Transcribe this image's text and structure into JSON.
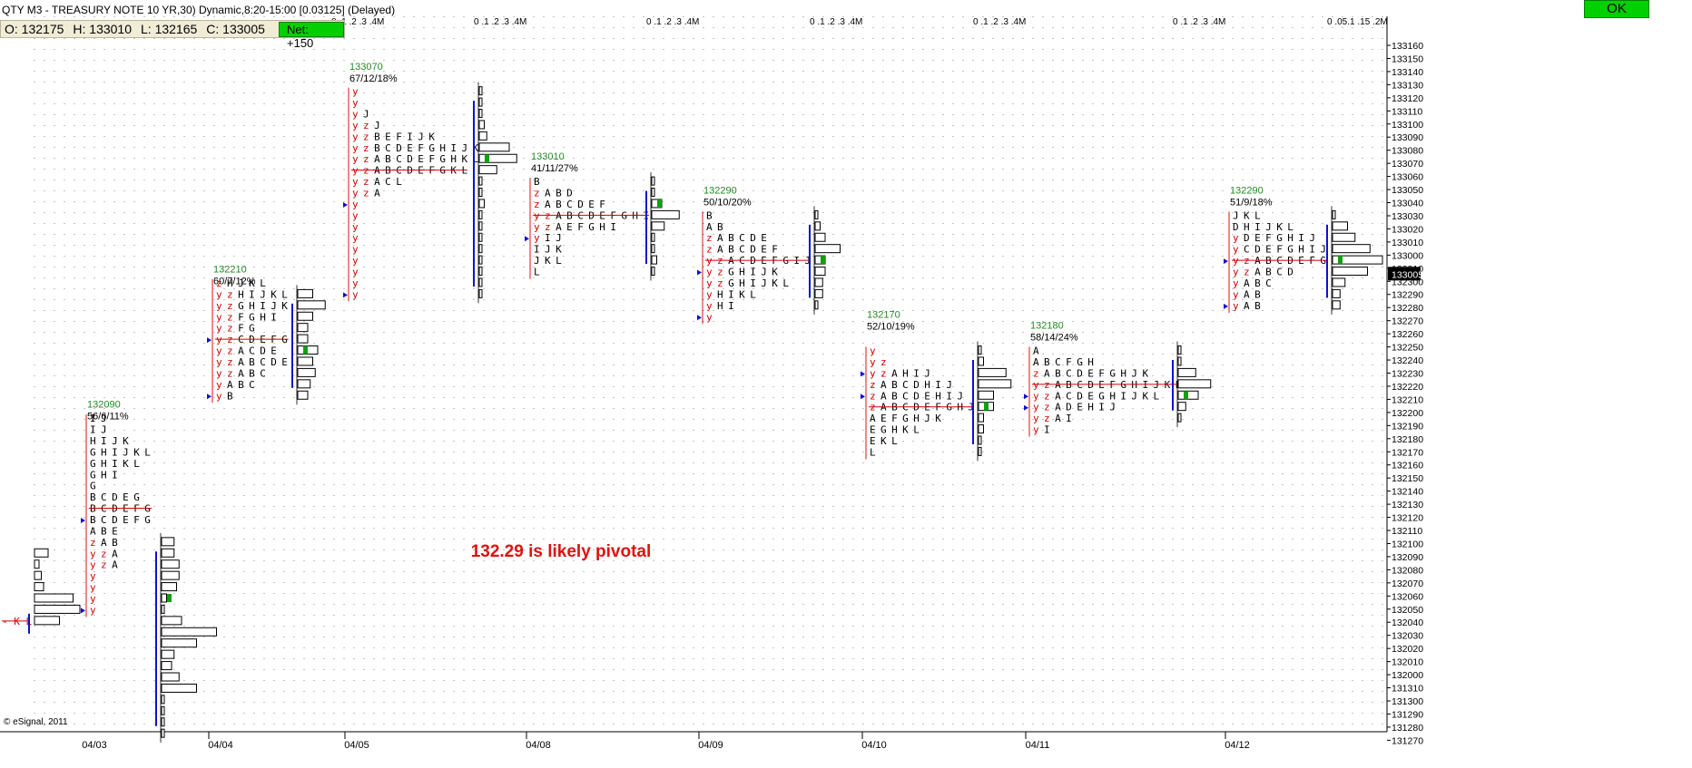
{
  "header": {
    "title": "QTY M3 - TREASURY NOTE 10 YR,30) Dynamic,8:20-15:00 [0.03125] (Delayed)",
    "open": "O: 132175",
    "high": "H: 133010",
    "low": "L: 132165",
    "close": "C: 133005",
    "net": "Net: +150",
    "ok": "OK",
    "brand": "© eSignal, 2011"
  },
  "chart_data": {
    "type": "table",
    "annotation": "132.29 is likely pivotal",
    "volume_scale_labels": [
      "0 .1 .2 .3 .4M",
      "0 .05.1 .15 .2M"
    ],
    "x_tick_labels": [
      "04/03",
      "04/04",
      "04/05",
      "04/08",
      "04/09",
      "04/10",
      "04/11",
      "04/12"
    ],
    "y_tick_labels": [
      "133160",
      "133150",
      "133140",
      "133130",
      "133120",
      "133110",
      "133100",
      "133090",
      "133080",
      "133070",
      "133060",
      "133050",
      "133040",
      "133030",
      "133020",
      "133010",
      "133000",
      "132310",
      "132300",
      "132290",
      "132280",
      "132270",
      "132260",
      "132250",
      "132240",
      "132230",
      "132220",
      "132210",
      "132200",
      "132190",
      "132180",
      "132170",
      "132160",
      "132150",
      "132140",
      "132130",
      "132120",
      "132110",
      "132100",
      "132090",
      "132080",
      "132070",
      "132060",
      "132050",
      "132040",
      "132030",
      "132020",
      "132010",
      "132000",
      "131310",
      "131300",
      "131290",
      "131280",
      "131270"
    ],
    "current_price_label": "133005",
    "profiles": [
      {
        "date": "04/03",
        "label_price": "132090",
        "label_stats": "56/6/11%",
        "label_row": 33,
        "tpo_start_row": 34,
        "tpo_rows": [
          "I J",
          "I J",
          "H I J K",
          "G H I J K L",
          "G H I K L",
          "G H I",
          "G",
          "B C D E G",
          "B C D E F G",
          "B C D E F G",
          "A B E",
          "z A B",
          "y z A",
          "y z A",
          "y",
          "y",
          "y",
          "y"
        ],
        "strike_rows": [
          8
        ],
        "marker_rows": [
          9,
          17
        ],
        "prev_tpo": "- K L -",
        "prev_row": 52,
        "vol_start_row": 45,
        "vol_bars": [
          0.05,
          0.05,
          0.07,
          0.07,
          0.06,
          0.02,
          0.01,
          0.08,
          0.22,
          0.14,
          0.05,
          0.04,
          0.07,
          0.14,
          0.01,
          0.01,
          0.01,
          0.01
        ],
        "prev_vol_start_row": 46,
        "prev_vol": [
          0.06,
          0.02,
          0.03,
          0.04,
          0.17,
          0.2,
          0.11
        ],
        "vol_ref_row": 50
      },
      {
        "date": "04/04",
        "label_price": "132210",
        "label_stats": "60/7/12%",
        "label_row": 21,
        "tpo_start_row": 22,
        "tpo_rows": [
          "z H J K L",
          "y z H I J K L",
          "y z G H I J K",
          "y z F G H I",
          "y z F G",
          "y z C D E F G",
          "y z A C D E",
          "y z A B C D E",
          "y z A B C",
          "y A B C",
          "y B"
        ],
        "strike_rows": [
          5
        ],
        "marker_rows": [
          5,
          10
        ],
        "vol_start_row": 23,
        "vol_bars": [
          0.06,
          0.11,
          0.06,
          0.04,
          0.04,
          0.08,
          0.06,
          0.07,
          0.05,
          0.04
        ],
        "vol_ref_row": 28
      },
      {
        "date": "04/05",
        "label_price": "133070",
        "label_stats": "67/12/18%",
        "label_row": 3,
        "tpo_start_row": 5,
        "tpo_rows": [
          "y",
          "y",
          "y J",
          "y z J",
          "y z B E F I J K",
          "y z B C D E F G H I J K",
          "y z A B C D E F G H K L",
          "y z A B C D E F G K L",
          "y z A C L",
          "y z A",
          "y",
          "y",
          "y",
          "y",
          "y",
          "y",
          "y",
          "y",
          "y"
        ],
        "strike_rows": [
          7
        ],
        "marker_rows": [
          10,
          18
        ],
        "vol_start_row": 5,
        "vol_bars": [
          0.01,
          0.01,
          0.01,
          0.02,
          0.03,
          0.12,
          0.15,
          0.07,
          0.01,
          0.01,
          0.02,
          0.01,
          0.01,
          0.01,
          0.01,
          0.01,
          0.01,
          0.01,
          0.01
        ],
        "vol_ref_row": 11
      },
      {
        "date": "04/08",
        "label_price": "133010",
        "label_stats": "41/11/27%",
        "label_row": 11,
        "tpo_start_row": 13,
        "tpo_rows": [
          "B",
          "z A B D",
          "z A B C D E F",
          "y z A B C D E F G H I",
          "y z A E F G H I",
          "y I J",
          "I J K",
          "J K L",
          "L"
        ],
        "strike_rows": [
          3
        ],
        "marker_rows": [
          5
        ],
        "vol_start_row": 13,
        "vol_bars": [
          0.01,
          0.01,
          0.04,
          0.11,
          0.05,
          0.01,
          0.01,
          0.02,
          0.01
        ],
        "vol_ref_row": 15
      },
      {
        "date": "04/09",
        "label_price": "132290",
        "label_stats": "50/10/20%",
        "label_row": 14,
        "tpo_start_row": 16,
        "tpo_rows": [
          "B",
          "A B",
          "z A B C D E",
          "z A B C D E F",
          "y z A C D E F G I J",
          "y z G H I J K",
          "y z G H I J K L",
          "y H I K L",
          "y H I",
          "y"
        ],
        "strike_rows": [
          4
        ],
        "marker_rows": [
          5,
          9
        ],
        "vol_start_row": 16,
        "vol_bars": [
          0.01,
          0.02,
          0.04,
          0.1,
          0.04,
          0.04,
          0.03,
          0.03,
          0.01
        ],
        "vol_ref_row": 20
      },
      {
        "date": "04/10",
        "label_price": "132170",
        "label_stats": "52/10/19%",
        "label_row": 25,
        "tpo_start_row": 28,
        "tpo_rows": [
          "y",
          "y z",
          "y z A H I J",
          "z A B C D H I J",
          "z A B C D E H I J",
          "z A B C D E F G H J",
          "A E F G H J K",
          "E G H K L",
          "E K L",
          "L"
        ],
        "strike_rows": [
          5
        ],
        "marker_rows": [
          2,
          4
        ],
        "vol_start_row": 28,
        "vol_bars": [
          0.01,
          0.02,
          0.11,
          0.13,
          0.06,
          0.06,
          0.02,
          0.02,
          0.01,
          0.01
        ],
        "vol_ref_row": 33
      },
      {
        "date": "04/11",
        "label_price": "132180",
        "label_stats": "58/14/24%",
        "label_row": 26,
        "tpo_start_row": 28,
        "tpo_rows": [
          "A",
          "A B C F G H",
          "z A B C D E F G H J K",
          "y z A B C D E F G H I J K L",
          "y z A C D E G H I J K L",
          "y z A D E H I J",
          "y z A I",
          "y I"
        ],
        "strike_rows": [
          3
        ],
        "marker_rows": [
          4,
          5
        ],
        "vol_start_row": 28,
        "vol_bars": [
          0.01,
          0.01,
          0.07,
          0.13,
          0.08,
          0.03,
          0.01
        ],
        "vol_ref_row": 32
      },
      {
        "date": "04/12",
        "label_price": "132290",
        "label_stats": "51/9/18%",
        "label_row": 14,
        "tpo_start_row": 16,
        "tpo_rows": [
          "J K L",
          "D H I J K L",
          "y D E F G H I J",
          "y C D E F G H I J",
          "y z A B C D E F G",
          "y z A B C D",
          "y A B C",
          "y A B",
          "y A B"
        ],
        "strike_rows": [
          4
        ],
        "marker_rows": [
          4,
          8
        ],
        "vol_start_row": 16,
        "vol_bars": [
          0.01,
          0.06,
          0.09,
          0.15,
          0.2,
          0.14,
          0.05,
          0.03,
          0.03
        ],
        "vol_ref_row": 20
      }
    ]
  }
}
